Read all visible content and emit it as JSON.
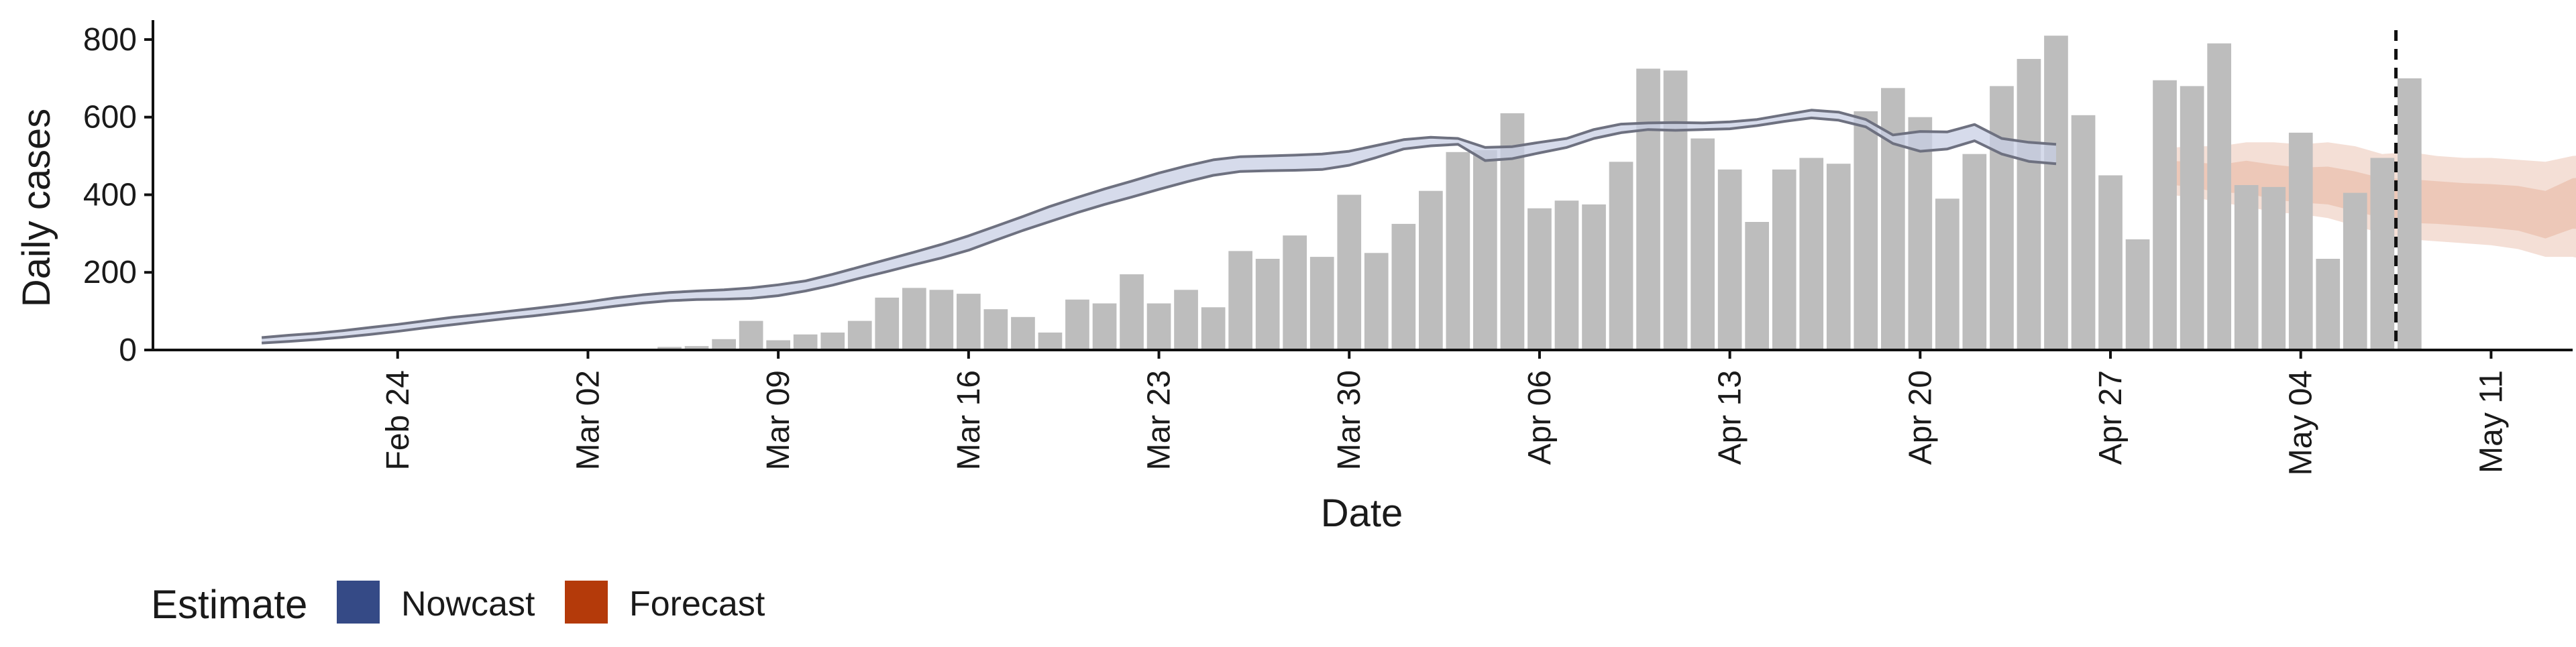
{
  "chart_data": {
    "type": "bar",
    "title": "",
    "xlabel": "Date",
    "ylabel": "Daily cases",
    "ylim": [
      0,
      850
    ],
    "y_ticks": [
      0,
      200,
      400,
      600,
      800
    ],
    "x_range": [
      "2020-02-15",
      "2020-05-14"
    ],
    "x_ticks": [
      {
        "date": "2020-02-24",
        "label": "Feb 24"
      },
      {
        "date": "2020-03-02",
        "label": "Mar 02"
      },
      {
        "date": "2020-03-09",
        "label": "Mar 09"
      },
      {
        "date": "2020-03-16",
        "label": "Mar 16"
      },
      {
        "date": "2020-03-23",
        "label": "Mar 23"
      },
      {
        "date": "2020-03-30",
        "label": "Mar 30"
      },
      {
        "date": "2020-04-06",
        "label": "Apr 06"
      },
      {
        "date": "2020-04-13",
        "label": "Apr 13"
      },
      {
        "date": "2020-04-20",
        "label": "Apr 20"
      },
      {
        "date": "2020-04-27",
        "label": "Apr 27"
      },
      {
        "date": "2020-05-04",
        "label": "May 04"
      },
      {
        "date": "2020-05-11",
        "label": "May 11"
      }
    ],
    "vline_date": "2020-05-07",
    "grid": false,
    "legend_position": "bottom-left",
    "legend": {
      "title": "Estimate",
      "items": [
        {
          "label": "Nowcast",
          "color": "#354a86"
        },
        {
          "label": "Forecast",
          "color": "#b43a0a"
        }
      ]
    },
    "colors": {
      "bars": "#bdbdbd",
      "nowcast_outline": "#6e7180",
      "nowcast_fill": "#c8cfe4",
      "forecast_fill": "#e7b9a4"
    },
    "bars": {
      "start_date": "2020-02-28",
      "values": [
        2,
        2,
        0,
        0,
        0,
        0,
        8,
        10,
        28,
        75,
        25,
        40,
        45,
        75,
        135,
        160,
        155,
        145,
        105,
        85,
        45,
        130,
        120,
        195,
        120,
        155,
        110,
        255,
        235,
        295,
        240,
        400,
        250,
        325,
        410,
        510,
        515,
        610,
        365,
        385,
        375,
        485,
        725,
        720,
        545,
        465,
        330,
        465,
        495,
        480,
        615,
        675,
        600,
        390,
        505,
        680,
        750,
        810,
        605,
        450,
        285,
        695,
        680,
        790,
        425,
        420,
        560,
        235,
        405,
        495,
        700
      ]
    },
    "nowcast": {
      "start_date": "2020-02-19",
      "upper": [
        32,
        38,
        43,
        50,
        58,
        66,
        75,
        84,
        91,
        99,
        107,
        115,
        124,
        134,
        142,
        148,
        152,
        155,
        160,
        168,
        178,
        195,
        214,
        233,
        252,
        272,
        294,
        319,
        344,
        370,
        393,
        415,
        435,
        456,
        474,
        490,
        498,
        500,
        502,
        505,
        512,
        527,
        542,
        548,
        545,
        522,
        524,
        535,
        545,
        568,
        582,
        585,
        586,
        585,
        588,
        594,
        606,
        618,
        613,
        594,
        554,
        563,
        562,
        581,
        545,
        535,
        530
      ],
      "lower": [
        18,
        22,
        27,
        33,
        40,
        48,
        57,
        65,
        73,
        81,
        88,
        96,
        104,
        113,
        121,
        127,
        130,
        131,
        133,
        140,
        152,
        167,
        185,
        202,
        220,
        237,
        257,
        283,
        308,
        331,
        354,
        375,
        394,
        414,
        433,
        450,
        460,
        462,
        463,
        465,
        476,
        496,
        518,
        526,
        530,
        488,
        493,
        508,
        522,
        545,
        560,
        568,
        566,
        568,
        570,
        578,
        589,
        598,
        592,
        575,
        532,
        512,
        518,
        539,
        505,
        486,
        480
      ]
    },
    "forecast": {
      "start_date": "2020-04-29",
      "median": [
        455,
        445,
        430,
        440,
        420,
        410,
        410,
        395,
        380,
        370,
        370,
        365,
        360,
        355,
        335,
        385,
        395,
        320,
        260,
        330,
        300,
        250,
        260
      ],
      "upper": [
        520,
        525,
        525,
        535,
        535,
        530,
        535,
        525,
        505,
        510,
        500,
        495,
        495,
        490,
        485,
        500,
        505,
        510,
        490,
        495,
        495,
        480,
        470
      ],
      "lower": [
        400,
        395,
        380,
        370,
        355,
        350,
        340,
        320,
        300,
        285,
        280,
        275,
        270,
        260,
        240,
        240,
        225,
        210,
        175,
        160,
        150,
        125,
        115
      ]
    }
  }
}
